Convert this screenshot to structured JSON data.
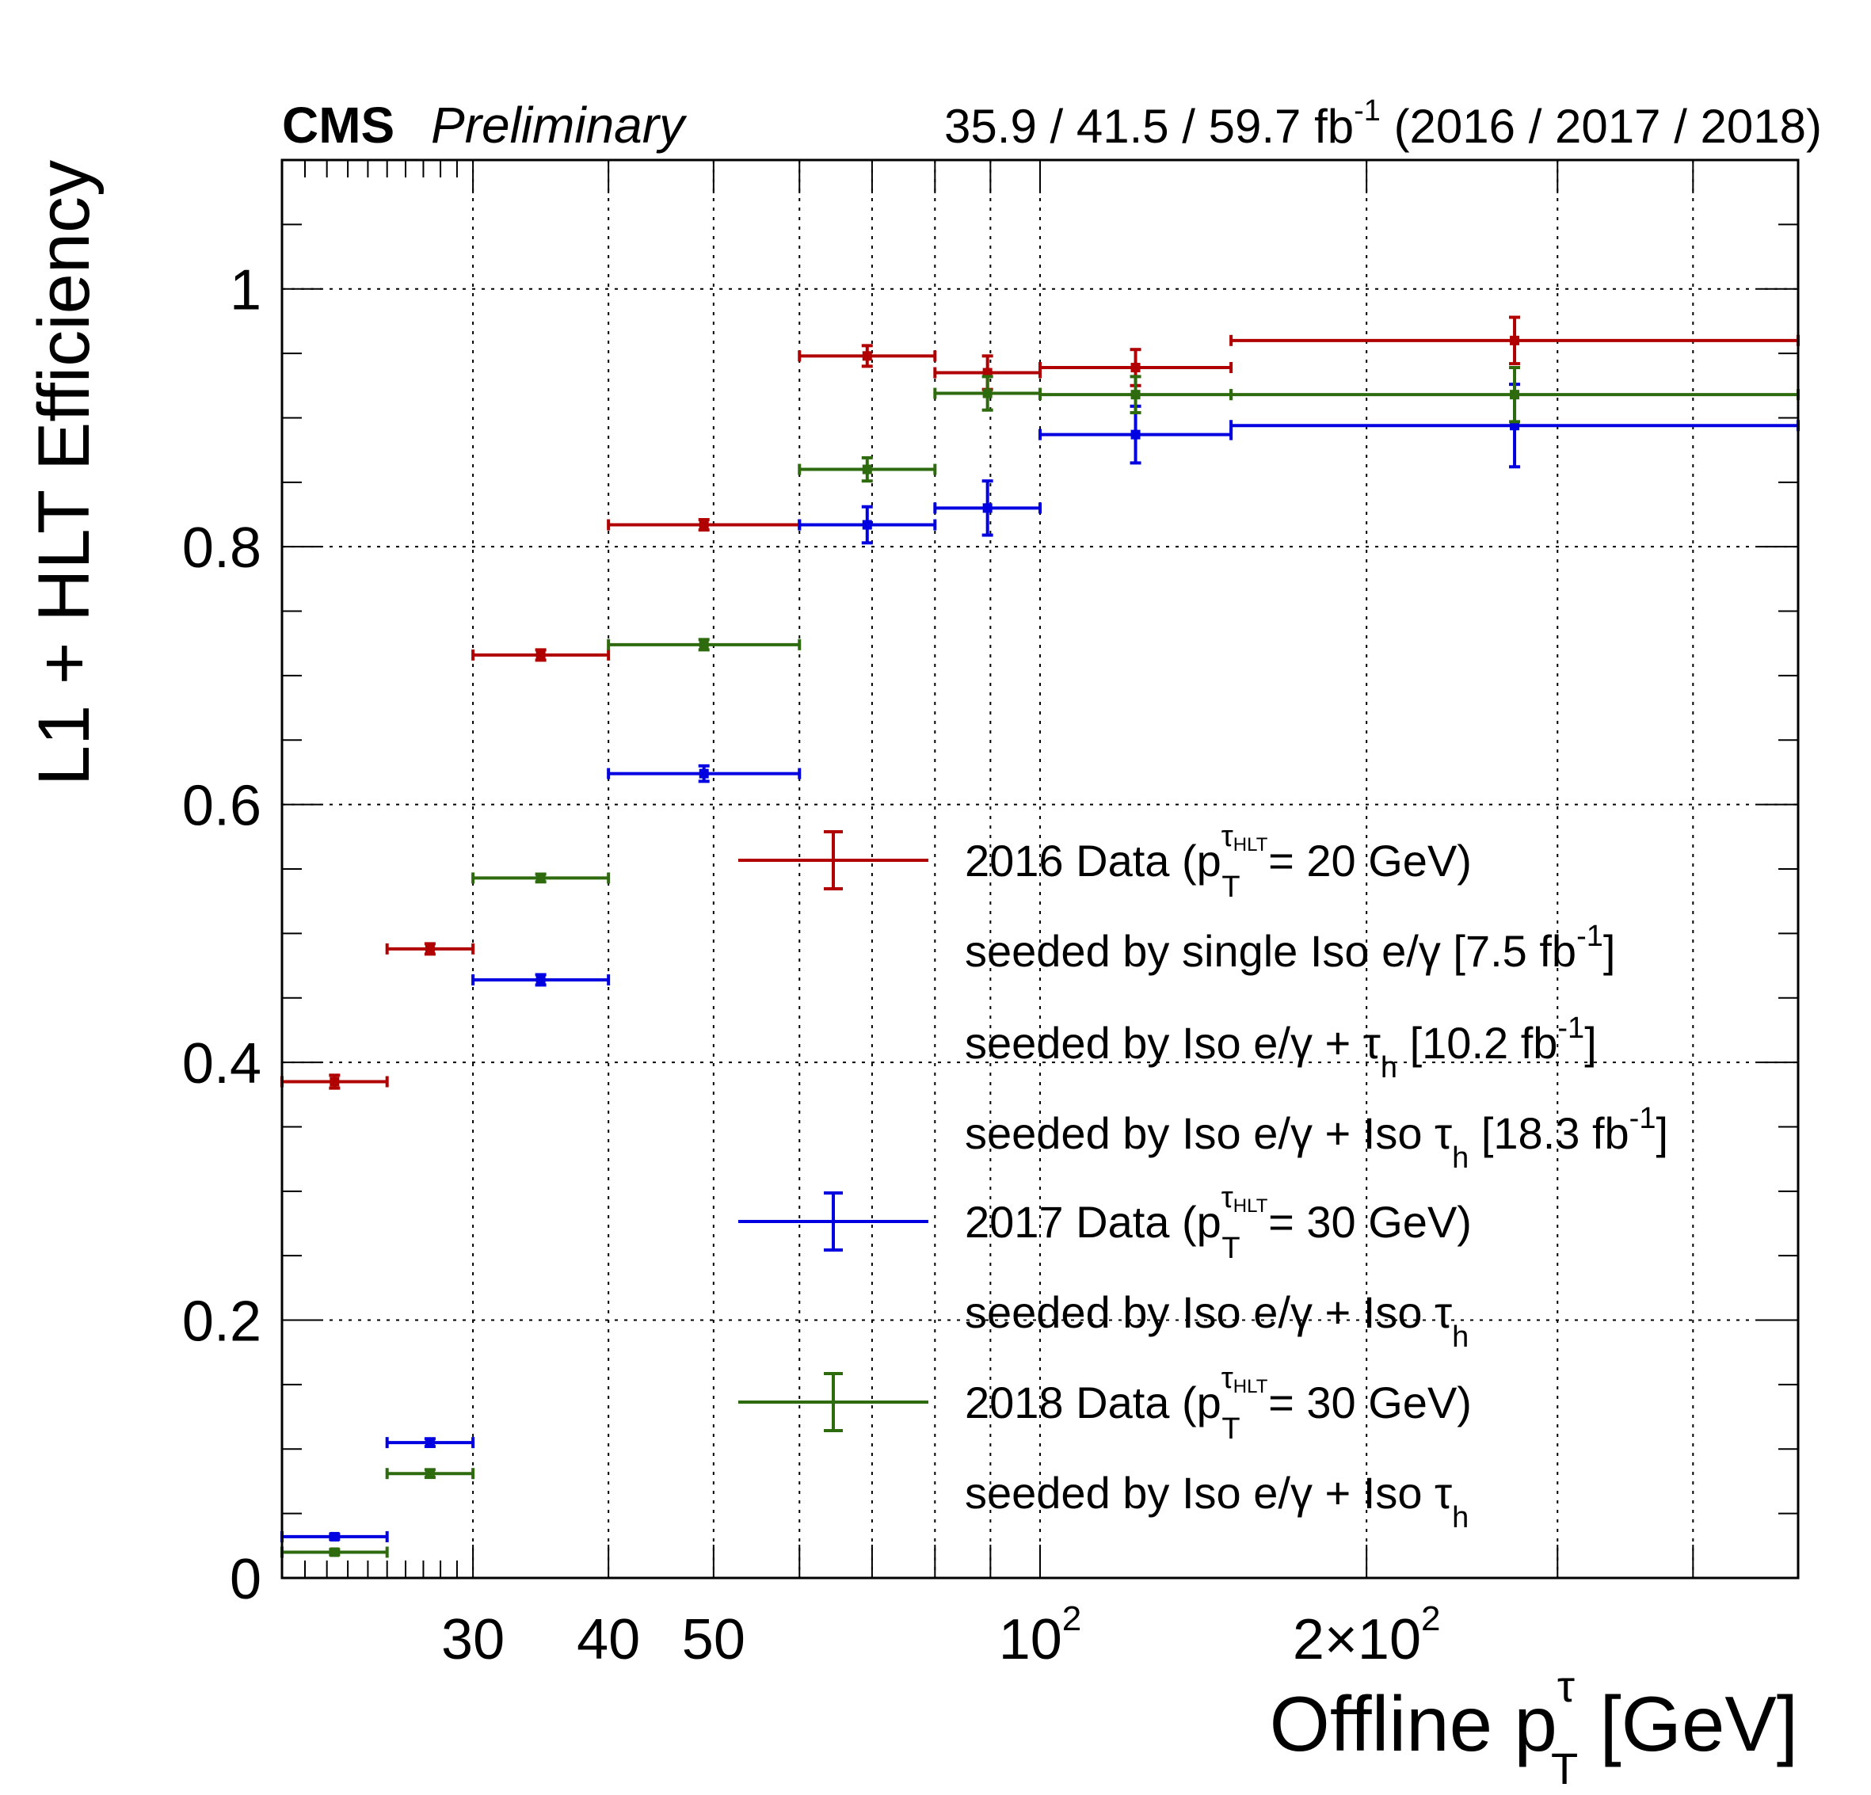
{
  "chart_data": {
    "type": "scatter",
    "experiment": "CMS",
    "status": "Preliminary",
    "lumi_label": {
      "main": "35.9 / 41.5 / 59.7 fb",
      "sup": "-1",
      "years": " (2016 / 2017 / 2018)"
    },
    "xlabel": {
      "main": "Offline p",
      "sup": "τ",
      "sub": "T",
      "unit": " [GeV]"
    },
    "ylabel": "L1 + HLT Efficiency",
    "x_scale": "log",
    "xlim": [
      20,
      500
    ],
    "ylim": [
      0,
      1.1
    ],
    "grid": true,
    "x_major_ticks": [
      30,
      40,
      50,
      60,
      70,
      80,
      90,
      100,
      200,
      300,
      400
    ],
    "x_tick_labels": [
      {
        "value": 30,
        "label": "30",
        "sup": ""
      },
      {
        "value": 40,
        "label": "40",
        "sup": ""
      },
      {
        "value": 50,
        "label": "50",
        "sup": ""
      },
      {
        "value": 100,
        "label": "10",
        "sup": "2"
      },
      {
        "value": 200,
        "label": "2×10",
        "sup": "2"
      }
    ],
    "y_ticks": [
      0,
      0.2,
      0.4,
      0.6,
      0.8,
      1
    ],
    "y_tick_labels": [
      "0",
      "0.2",
      "0.4",
      "0.6",
      "0.8",
      "1"
    ],
    "y_minor_step": 0.05,
    "series": [
      {
        "name": "2016 Data",
        "color": "#b00000",
        "points": [
          {
            "xlow": 20,
            "xhigh": 25,
            "y": 0.385,
            "err": 0.005
          },
          {
            "xlow": 25,
            "xhigh": 30,
            "y": 0.488,
            "err": 0.004
          },
          {
            "xlow": 30,
            "xhigh": 40,
            "y": 0.716,
            "err": 0.004
          },
          {
            "xlow": 40,
            "xhigh": 60,
            "y": 0.817,
            "err": 0.004
          },
          {
            "xlow": 60,
            "xhigh": 80,
            "y": 0.948,
            "err": 0.008
          },
          {
            "xlow": 80,
            "xhigh": 100,
            "y": 0.935,
            "err": 0.013
          },
          {
            "xlow": 100,
            "xhigh": 150,
            "y": 0.939,
            "err": 0.014
          },
          {
            "xlow": 150,
            "xhigh": 500,
            "y": 0.96,
            "err": 0.018
          }
        ]
      },
      {
        "name": "2017 Data",
        "color": "#0000e0",
        "points": [
          {
            "xlow": 20,
            "xhigh": 25,
            "y": 0.032,
            "err": 0.002
          },
          {
            "xlow": 25,
            "xhigh": 30,
            "y": 0.105,
            "err": 0.003
          },
          {
            "xlow": 30,
            "xhigh": 40,
            "y": 0.464,
            "err": 0.004
          },
          {
            "xlow": 40,
            "xhigh": 60,
            "y": 0.624,
            "err": 0.006
          },
          {
            "xlow": 60,
            "xhigh": 80,
            "y": 0.817,
            "err": 0.014
          },
          {
            "xlow": 80,
            "xhigh": 100,
            "y": 0.83,
            "err": 0.021
          },
          {
            "xlow": 100,
            "xhigh": 150,
            "y": 0.887,
            "err": 0.022
          },
          {
            "xlow": 150,
            "xhigh": 500,
            "y": 0.894,
            "err": 0.032
          }
        ]
      },
      {
        "name": "2018 Data",
        "color": "#2e6b0e",
        "points": [
          {
            "xlow": 20,
            "xhigh": 25,
            "y": 0.02,
            "err": 0.002
          },
          {
            "xlow": 25,
            "xhigh": 30,
            "y": 0.081,
            "err": 0.003
          },
          {
            "xlow": 30,
            "xhigh": 40,
            "y": 0.543,
            "err": 0.003
          },
          {
            "xlow": 40,
            "xhigh": 60,
            "y": 0.724,
            "err": 0.004
          },
          {
            "xlow": 60,
            "xhigh": 80,
            "y": 0.86,
            "err": 0.009
          },
          {
            "xlow": 80,
            "xhigh": 100,
            "y": 0.919,
            "err": 0.013
          },
          {
            "xlow": 100,
            "xhigh": 150,
            "y": 0.918,
            "err": 0.014
          },
          {
            "xlow": 150,
            "xhigh": 500,
            "y": 0.918,
            "err": 0.021
          }
        ]
      }
    ],
    "legend": [
      {
        "type": "entry",
        "color": "#b00000",
        "pre": "2016 Data (p",
        "sup": "τ",
        "supsub": "HLT",
        "sub": "T",
        "post": " = 20 GeV)"
      },
      {
        "type": "text",
        "pre": "seeded by single Iso e/γ  [7.5 fb",
        "sup": "-1",
        "post": "]"
      },
      {
        "type": "text",
        "pre": "seeded by Iso e/γ + τ",
        "sub": "h",
        "post": " [10.2 fb",
        "sup2": "-1",
        "post2": "]"
      },
      {
        "type": "text",
        "pre": "seeded by Iso e/γ + Iso τ",
        "sub": "h",
        "post": " [18.3 fb",
        "sup2": "-1",
        "post2": "]"
      },
      {
        "type": "entry",
        "color": "#0000e0",
        "pre": "2017 Data (p",
        "sup": "τ",
        "supsub": "HLT",
        "sub": "T",
        "post": " = 30 GeV)"
      },
      {
        "type": "text",
        "pre": "seeded by Iso e/γ + Iso τ",
        "sub": "h",
        "post": ""
      },
      {
        "type": "entry",
        "color": "#2e6b0e",
        "pre": "2018 Data (p",
        "sup": "τ",
        "supsub": "HLT",
        "sub": "T",
        "post": " = 30 GeV)"
      },
      {
        "type": "text",
        "pre": "seeded by Iso e/γ + Iso τ",
        "sub": "h",
        "post": ""
      }
    ]
  }
}
